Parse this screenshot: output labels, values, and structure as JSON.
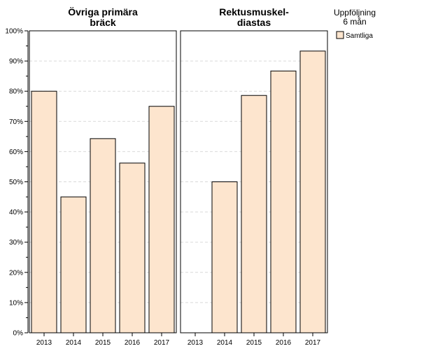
{
  "chart_data": {
    "type": "bar",
    "y_tick_labels": [
      "0%",
      "10%",
      "20%",
      "30%",
      "40%",
      "50%",
      "60%",
      "70%",
      "80%",
      "90%",
      "100%"
    ],
    "ylim": [
      0,
      100
    ],
    "grid": true,
    "legend": {
      "title_line1": "Uppföljning",
      "title_line2": "6 mån",
      "entries": [
        "Samtliga"
      ],
      "placement": "right",
      "bar_color": "#fde5ce"
    },
    "panels": [
      {
        "title_line1": "Övriga primära",
        "title_line2": "bräck",
        "categories": [
          "2013",
          "2014",
          "2015",
          "2016",
          "2017"
        ],
        "values": [
          80,
          45,
          64.3,
          56.2,
          75
        ]
      },
      {
        "title_line1": "Rektusmuskel-",
        "title_line2": "diastas",
        "categories": [
          "2013",
          "2014",
          "2015",
          "2016",
          "2017"
        ],
        "values": [
          null,
          50,
          78.6,
          86.7,
          93.3
        ]
      }
    ]
  }
}
